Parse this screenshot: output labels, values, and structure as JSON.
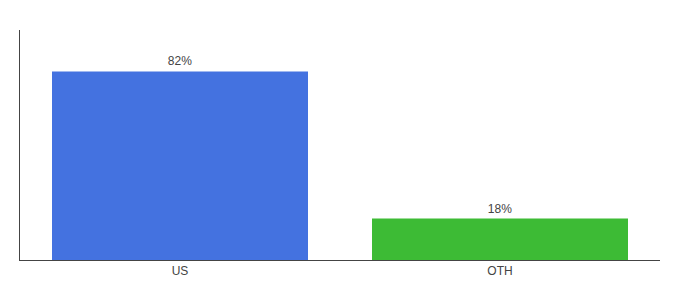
{
  "chart_data": {
    "type": "bar",
    "categories": [
      "US",
      "OTH"
    ],
    "values": [
      82,
      18
    ],
    "value_labels": [
      "82%",
      "18%"
    ],
    "colors": [
      "#4472e0",
      "#3dbb35"
    ],
    "ylim": [
      0,
      100
    ],
    "data_labels": true,
    "tick_labels": "x",
    "grid": false
  }
}
